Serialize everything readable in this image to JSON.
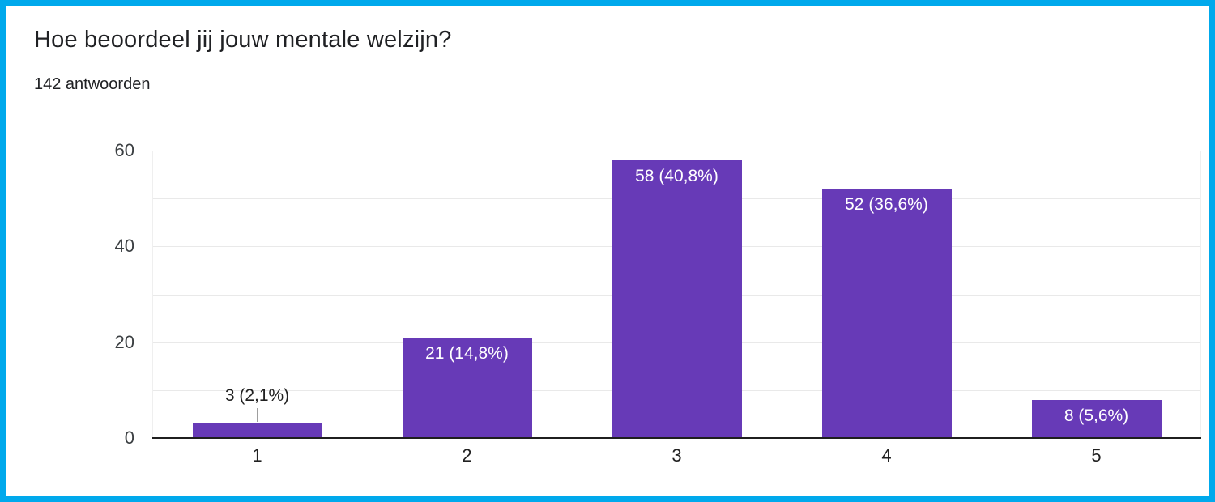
{
  "frame": {
    "border_color": "#00a9ec"
  },
  "header": {
    "title": "Hoe beoordeel jij jouw mentale welzijn?",
    "response_count": "142 antwoorden"
  },
  "chart_data": {
    "type": "bar",
    "title": "Hoe beoordeel jij jouw mentale welzijn?",
    "subtitle": "142 antwoorden",
    "categories": [
      "1",
      "2",
      "3",
      "4",
      "5"
    ],
    "values": [
      3,
      21,
      58,
      52,
      8
    ],
    "data_labels": [
      "3 (2,1%)",
      "21 (14,8%)",
      "58 (40,8%)",
      "52 (36,6%)",
      "8 (5,6%)"
    ],
    "xlabel": "",
    "ylabel": "",
    "ylim": [
      0,
      60
    ],
    "yticks": [
      0,
      20,
      40,
      60
    ],
    "gridline_step": 10,
    "grid": true,
    "legend": "none",
    "bar_color": "#673ab7",
    "label_inside_color": "#ffffff",
    "label_outside_color": "#212121"
  }
}
